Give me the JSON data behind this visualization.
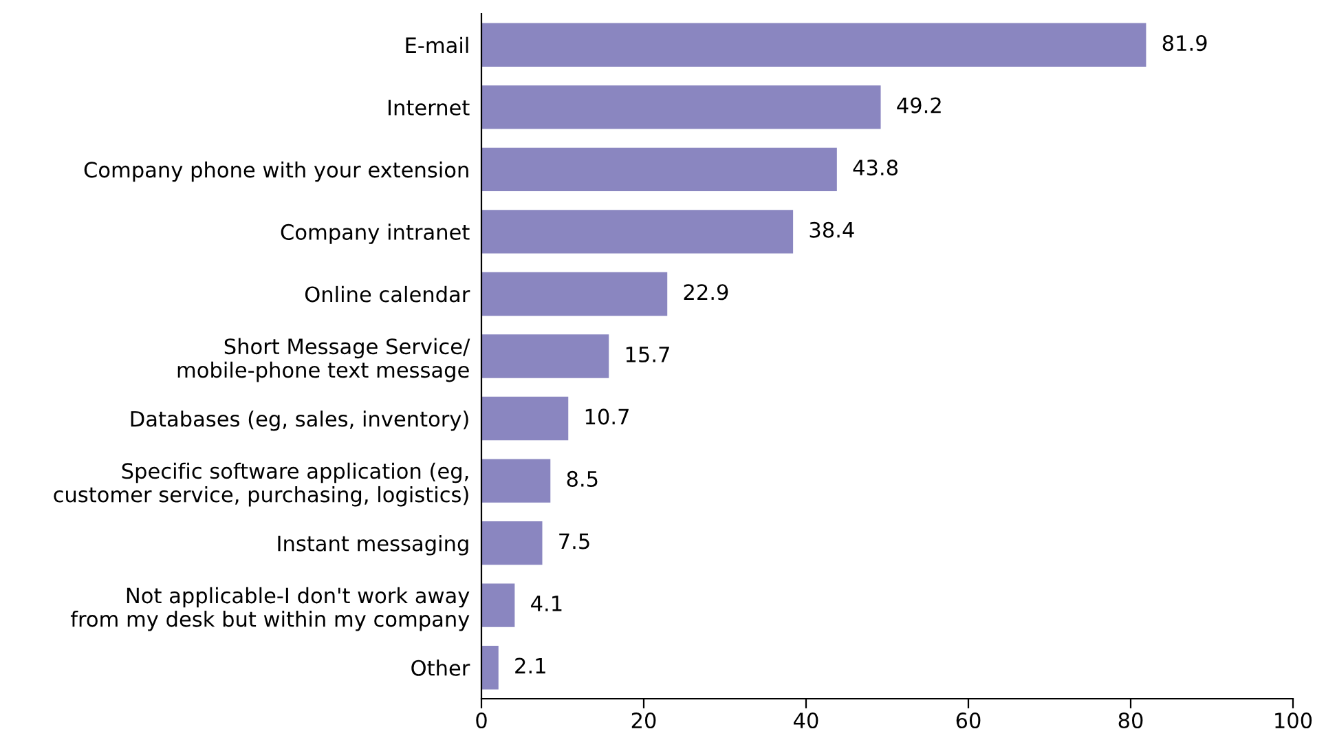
{
  "chart_data": {
    "type": "bar",
    "orientation": "horizontal",
    "categories": [
      "E-mail",
      "Internet",
      "Company phone with your extension",
      "Company intranet",
      "Online calendar",
      "Short Message Service/\nmobile-phone text message",
      "Databases (eg, sales, inventory)",
      "Specific software application (eg,\ncustomer service, purchasing, logistics)",
      "Instant messaging",
      "Not applicable-I don't work away\nfrom my desk but within my company",
      "Other"
    ],
    "values": [
      81.9,
      49.2,
      43.8,
      38.4,
      22.9,
      15.7,
      10.7,
      8.5,
      7.5,
      4.1,
      2.1
    ],
    "color": "#8a86c0",
    "xlim": [
      0,
      100
    ],
    "xticks": [
      0,
      20,
      40,
      60,
      80,
      100
    ],
    "data_labels": true,
    "grid": false,
    "legend": false
  }
}
